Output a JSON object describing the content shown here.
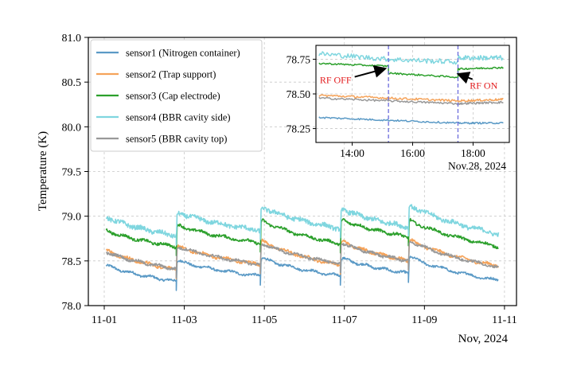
{
  "chart_data": [
    {
      "id": "main",
      "type": "line",
      "title": "",
      "xlabel": "Nov, 2024",
      "ylabel": "Temperature (K)",
      "xlim": [
        0,
        10.3
      ],
      "ylim": [
        78.0,
        81.0
      ],
      "grid": true,
      "legend_position": "top-left",
      "x_ticks": [
        {
          "value": 0,
          "label": "11-01"
        },
        {
          "value": 2,
          "label": "11-03"
        },
        {
          "value": 4,
          "label": "11-05"
        },
        {
          "value": 6,
          "label": "11-07"
        },
        {
          "value": 8,
          "label": "11-09"
        },
        {
          "value": 10,
          "label": "11-11"
        }
      ],
      "y_ticks": [
        {
          "value": 78.0,
          "label": "78.0"
        },
        {
          "value": 78.5,
          "label": "78.5"
        },
        {
          "value": 79.0,
          "label": "79.0"
        },
        {
          "value": 79.5,
          "label": "79.5"
        },
        {
          "value": 80.0,
          "label": "80.0"
        },
        {
          "value": 80.5,
          "label": "80.5"
        },
        {
          "value": 81.0,
          "label": "81.0"
        }
      ],
      "cycles": [
        [
          0,
          1.8
        ],
        [
          1.8,
          3.9
        ],
        [
          3.9,
          5.9
        ],
        [
          5.9,
          7.6
        ],
        [
          7.6,
          9.85
        ]
      ],
      "series": [
        {
          "name": "sensor1 (Nitrogen container)",
          "color": "#5b9ac6",
          "starts": [
            78.45,
            78.5,
            78.53,
            78.53,
            78.54
          ],
          "ends": [
            78.27,
            78.33,
            78.33,
            78.36,
            78.28
          ],
          "noise": 0.012
        },
        {
          "name": "sensor2 (Trap support)",
          "color": "#f5a35a",
          "starts": [
            78.62,
            78.66,
            78.72,
            78.72,
            78.73
          ],
          "ends": [
            78.4,
            78.46,
            78.45,
            78.5,
            78.44
          ],
          "noise": 0.015
        },
        {
          "name": "sensor3 (Cap electrode)",
          "color": "#2ca02c",
          "starts": [
            78.84,
            78.9,
            78.95,
            78.96,
            78.95
          ],
          "ends": [
            78.66,
            78.7,
            78.69,
            78.77,
            78.66
          ],
          "noise": 0.015
        },
        {
          "name": "sensor4 (BBR cavity side)",
          "color": "#7fd6df",
          "starts": [
            78.99,
            79.04,
            79.1,
            79.08,
            79.12
          ],
          "ends": [
            78.78,
            78.84,
            78.86,
            78.88,
            78.8
          ],
          "noise": 0.025
        },
        {
          "name": "sensor5 (BBR cavity top)",
          "color": "#999999",
          "starts": [
            78.6,
            78.66,
            78.69,
            78.7,
            78.72
          ],
          "ends": [
            78.41,
            78.46,
            78.47,
            78.5,
            78.43
          ],
          "noise": 0.014
        }
      ]
    },
    {
      "id": "inset",
      "type": "line",
      "xlabel": "Nov.28, 2024",
      "ylabel": "",
      "xlim": [
        12.8,
        19.2
      ],
      "ylim": [
        78.15,
        78.85
      ],
      "grid": true,
      "x_ticks": [
        {
          "value": 14,
          "label": "14:00"
        },
        {
          "value": 16,
          "label": "16:00"
        },
        {
          "value": 18,
          "label": "18:00"
        }
      ],
      "y_ticks": [
        {
          "value": 78.25,
          "label": "78.25"
        },
        {
          "value": 78.5,
          "label": "78.50"
        },
        {
          "value": 78.75,
          "label": "78.75"
        }
      ],
      "vlines": [
        15.2,
        17.5
      ],
      "annotations": [
        {
          "text": "RF OFF",
          "color": "#e31a1c",
          "text_x": 13.45,
          "text_y": 78.6,
          "arrow_to_x": 15.05,
          "arrow_to_y": 78.68
        },
        {
          "text": "RF ON",
          "color": "#e31a1c",
          "text_x": 18.35,
          "text_y": 78.56,
          "arrow_to_x": 17.55,
          "arrow_to_y": 78.64
        }
      ],
      "series": [
        {
          "name": "sensor1",
          "color": "#5b9ac6",
          "segments": [
            [
              12.9,
              78.33,
              15.2,
              78.31
            ],
            [
              15.2,
              78.31,
              17.5,
              78.29
            ],
            [
              17.5,
              78.29,
              19.0,
              78.29
            ]
          ],
          "noise": 0.006
        },
        {
          "name": "sensor2",
          "color": "#f5a35a",
          "segments": [
            [
              12.9,
              78.49,
              15.2,
              78.47
            ],
            [
              15.2,
              78.47,
              17.5,
              78.45
            ],
            [
              17.5,
              78.45,
              19.0,
              78.46
            ]
          ],
          "noise": 0.008
        },
        {
          "name": "sensor3",
          "color": "#2ca02c",
          "segments": [
            [
              12.9,
              78.72,
              15.2,
              78.7
            ],
            [
              15.2,
              78.65,
              17.5,
              78.62
            ],
            [
              17.5,
              78.68,
              19.0,
              78.69
            ]
          ],
          "noise": 0.006
        },
        {
          "name": "sensor4",
          "color": "#7fd6df",
          "segments": [
            [
              12.9,
              78.79,
              15.2,
              78.75
            ],
            [
              15.2,
              78.75,
              17.5,
              78.73
            ],
            [
              17.5,
              78.76,
              19.0,
              78.76
            ]
          ],
          "noise": 0.018
        },
        {
          "name": "sensor5",
          "color": "#999999",
          "segments": [
            [
              12.9,
              78.47,
              15.2,
              78.45
            ],
            [
              15.2,
              78.45,
              17.5,
              78.43
            ],
            [
              17.5,
              78.43,
              19.0,
              78.44
            ]
          ],
          "noise": 0.007
        }
      ]
    }
  ]
}
